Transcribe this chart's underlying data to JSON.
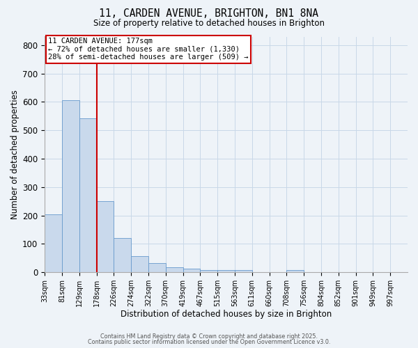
{
  "title_line1": "11, CARDEN AVENUE, BRIGHTON, BN1 8NA",
  "title_line2": "Size of property relative to detached houses in Brighton",
  "xlabel": "Distribution of detached houses by size in Brighton",
  "ylabel": "Number of detached properties",
  "categories": [
    "33sqm",
    "81sqm",
    "129sqm",
    "178sqm",
    "226sqm",
    "274sqm",
    "322sqm",
    "370sqm",
    "419sqm",
    "467sqm",
    "515sqm",
    "563sqm",
    "611sqm",
    "660sqm",
    "708sqm",
    "756sqm",
    "804sqm",
    "852sqm",
    "901sqm",
    "949sqm",
    "997sqm"
  ],
  "bar_heights": [
    203,
    605,
    543,
    251,
    120,
    58,
    33,
    17,
    13,
    8,
    7,
    7,
    0,
    0,
    7,
    0,
    0,
    0,
    0,
    0,
    0
  ],
  "bar_color": "#c9d9ec",
  "bar_edge_color": "#6699cc",
  "red_line_index": 3,
  "red_line_color": "#cc0000",
  "annotation_line1": "11 CARDEN AVENUE: 177sqm",
  "annotation_line2": "← 72% of detached houses are smaller (1,330)",
  "annotation_line3": "28% of semi-detached houses are larger (509) →",
  "annotation_box_color": "#ffffff",
  "annotation_box_edge": "#cc0000",
  "ylim": [
    0,
    830
  ],
  "yticks": [
    0,
    100,
    200,
    300,
    400,
    500,
    600,
    700,
    800
  ],
  "grid_color": "#c8d8e8",
  "background_color": "#eef3f8",
  "footer_line1": "Contains HM Land Registry data © Crown copyright and database right 2025.",
  "footer_line2": "Contains public sector information licensed under the Open Government Licence v3.0."
}
